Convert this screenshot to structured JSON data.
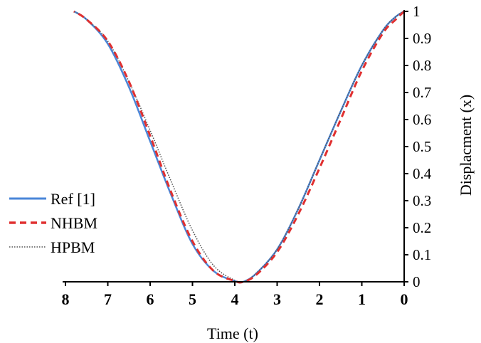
{
  "chart_data": {
    "type": "line",
    "title": "",
    "xlabel": "Time (t)",
    "ylabel": "Displacment (x)",
    "x_reversed": true,
    "xlim": [
      0,
      8
    ],
    "ylim": [
      0,
      1
    ],
    "xticks": [
      "8",
      "7",
      "6",
      "5",
      "4",
      "3",
      "2",
      "1",
      "0"
    ],
    "yticks": [
      "0",
      "0.1",
      "0.2",
      "0.3",
      "0.4",
      "0.5",
      "0.6",
      "0.7",
      "0.8",
      "0.9",
      "1"
    ],
    "grid": false,
    "legend_position": "left",
    "series": [
      {
        "name": "Ref [1]",
        "color": "#4a86d8",
        "style": "solid",
        "x": [
          0,
          0.2,
          0.5,
          1,
          1.5,
          2,
          2.5,
          3,
          3.5,
          3.8,
          4,
          4.5,
          5,
          5.5,
          6,
          6.5,
          7,
          7.5,
          7.8
        ],
        "y": [
          1,
          0.98,
          0.93,
          0.8,
          0.63,
          0.45,
          0.27,
          0.12,
          0.03,
          0,
          0.003,
          0.04,
          0.14,
          0.32,
          0.52,
          0.72,
          0.88,
          0.97,
          1
        ]
      },
      {
        "name": "NHBM",
        "color": "#e03030",
        "style": "dashed",
        "x": [
          0,
          0.2,
          0.5,
          1,
          1.5,
          2,
          2.5,
          3,
          3.5,
          3.8,
          4,
          4.5,
          5,
          5.5,
          6,
          6.5,
          7,
          7.5,
          7.8
        ],
        "y": [
          1,
          0.97,
          0.92,
          0.78,
          0.6,
          0.42,
          0.25,
          0.11,
          0.025,
          0,
          0.003,
          0.04,
          0.15,
          0.33,
          0.54,
          0.74,
          0.89,
          0.97,
          1
        ]
      },
      {
        "name": "HPBM",
        "color": "#555555",
        "style": "dotted",
        "x": [
          0,
          0.2,
          0.5,
          1,
          1.5,
          2,
          2.5,
          3,
          3.5,
          3.8,
          4,
          4.5,
          5,
          5.5,
          6,
          6.5,
          7,
          7.5,
          7.8
        ],
        "y": [
          1,
          0.98,
          0.93,
          0.8,
          0.63,
          0.45,
          0.27,
          0.12,
          0.03,
          0,
          0.005,
          0.06,
          0.19,
          0.37,
          0.56,
          0.74,
          0.89,
          0.97,
          1
        ]
      }
    ]
  }
}
